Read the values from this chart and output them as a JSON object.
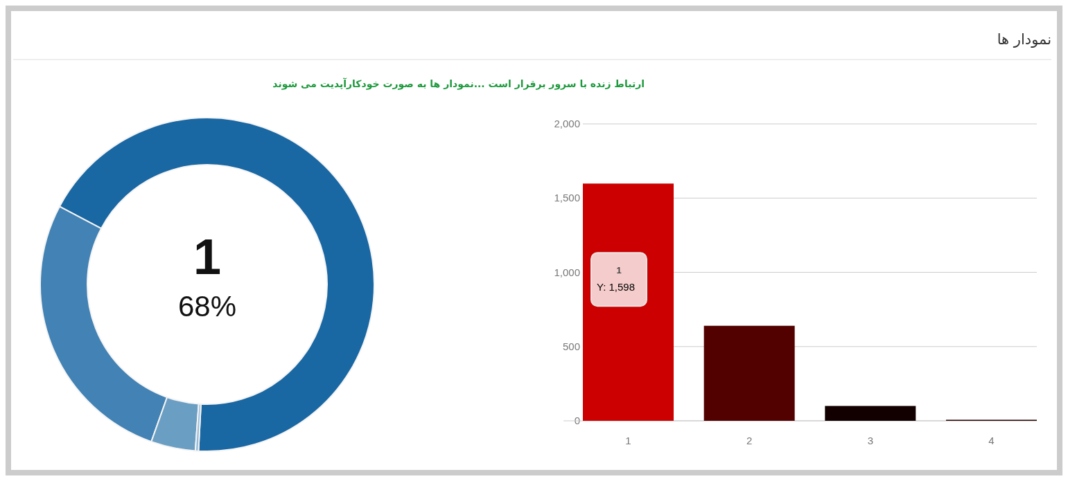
{
  "chart_data": [
    {
      "type": "other",
      "title": "نمودار ها",
      "subtitle": "ارتباط زنده با سرور برقرار است ...نمودار ها به صورت خودکارآپدیت می شوند"
    },
    {
      "type": "donut",
      "categories": [
        null,
        null,
        null,
        null
      ],
      "values": [
        68.1,
        27.3,
        4.3,
        0.3
      ],
      "colors": [
        "#1967a3",
        "#4282b4",
        "#6b9ec3",
        "#96bad8"
      ],
      "annotations": [
        "1",
        "68%"
      ]
    },
    {
      "type": "bar",
      "categories": [
        "1",
        "2",
        "3",
        "4"
      ],
      "values": [
        1598,
        640,
        100,
        7
      ],
      "colors": [
        "#cc0000",
        "#520000",
        "#120000",
        "#2a0000"
      ],
      "ylim": [
        0,
        2000
      ],
      "yticks": [
        0,
        500,
        {
          "value": 1000,
          "label": "1,000"
        },
        {
          "value": 1500,
          "label": "1,500"
        },
        {
          "value": 2000,
          "label": "2,000"
        }
      ],
      "grid": "y",
      "annotations": [
        "1",
        "Y: 1,598"
      ]
    }
  ]
}
